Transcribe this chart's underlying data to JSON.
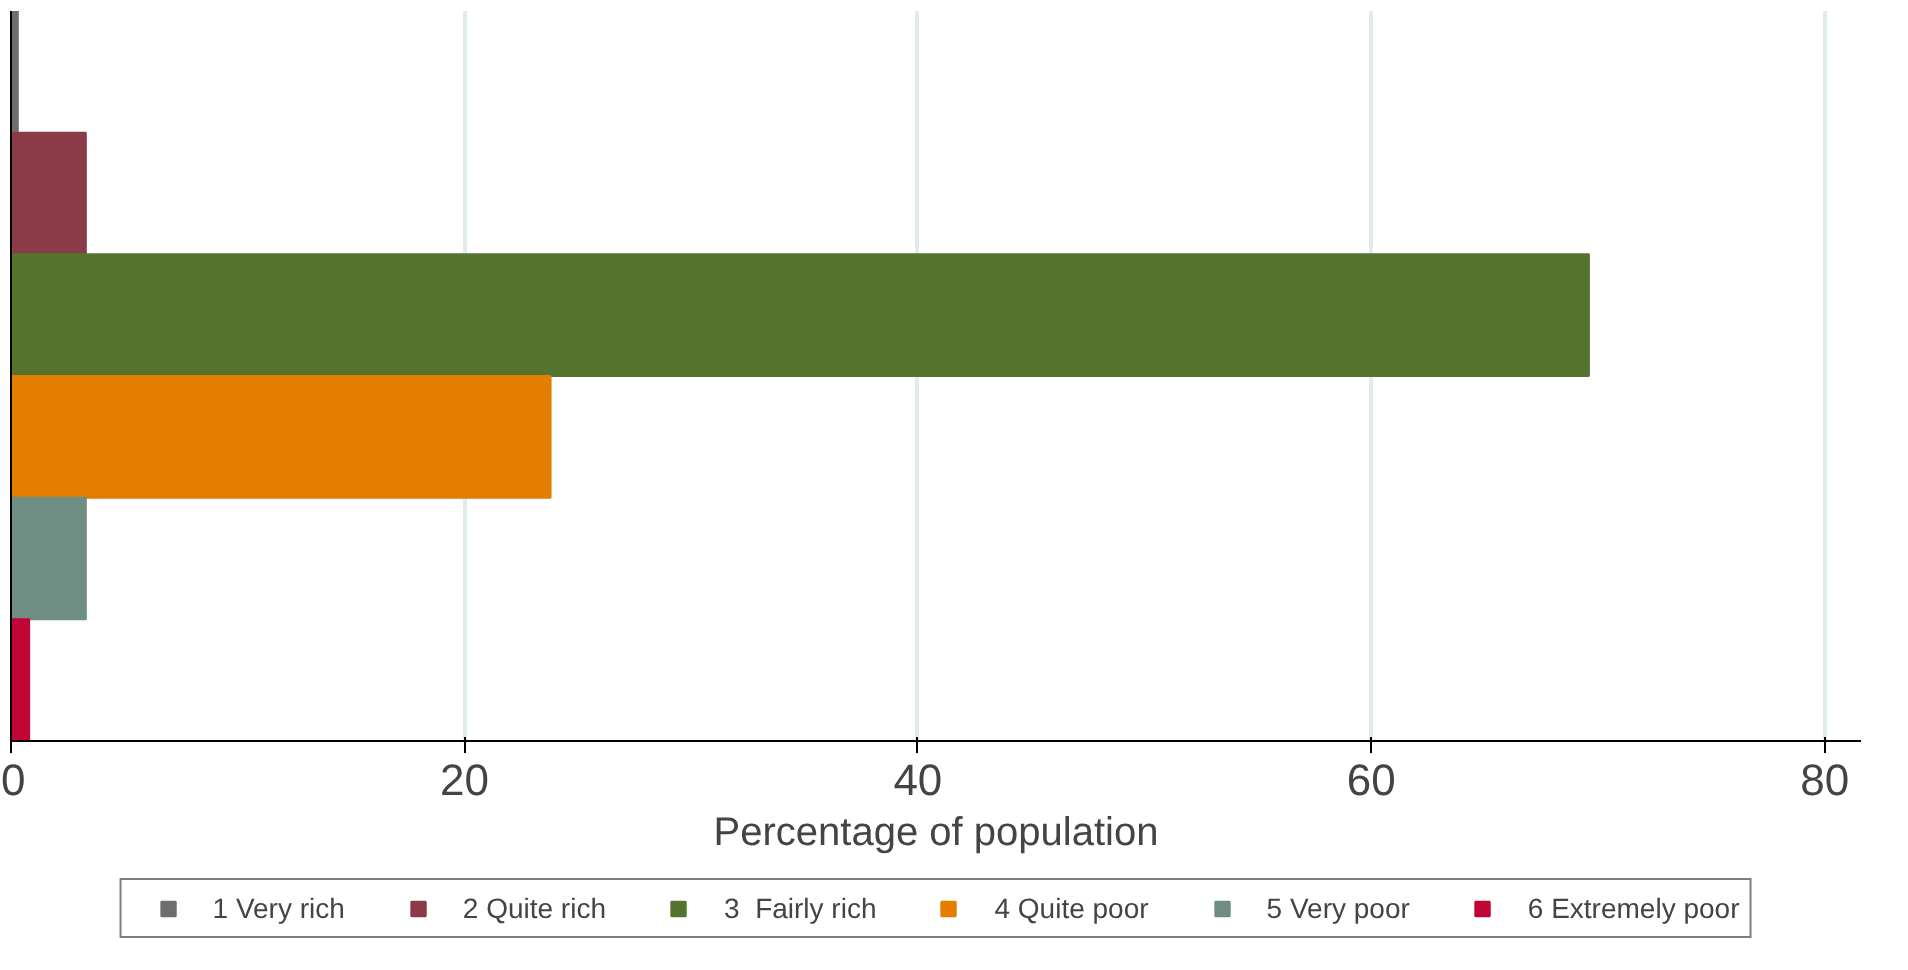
{
  "chart_data": {
    "type": "bar",
    "orientation": "horizontal",
    "xlabel": "Percentage of population",
    "categories": [
      null,
      null,
      null,
      null,
      null,
      null
    ],
    "series": [
      {
        "name": "1 Very rich",
        "color": "#6e6e6e",
        "values": [
          0.3,
          null,
          null,
          null,
          null,
          null
        ]
      },
      {
        "name": "2 Quite rich",
        "color": "#8b3a47",
        "values": [
          null,
          3.3,
          null,
          null,
          null,
          null
        ]
      },
      {
        "name": "3  Fairly rich",
        "color": "#55752f",
        "values": [
          null,
          null,
          69.6,
          null,
          null,
          null
        ]
      },
      {
        "name": "4 Quite poor",
        "color": "#e37e00",
        "values": [
          null,
          null,
          null,
          23.8,
          null,
          null
        ]
      },
      {
        "name": "5 Very poor",
        "color": "#6e8e84",
        "values": [
          null,
          null,
          null,
          null,
          3.3,
          null
        ]
      },
      {
        "name": "6 Extremely poor",
        "color": "#c10534",
        "values": [
          null,
          null,
          null,
          null,
          null,
          0.8
        ]
      }
    ],
    "xlim": [
      0,
      81.6
    ],
    "xticks": [
      0,
      20,
      40,
      60,
      80
    ],
    "grid": "x",
    "legend": "bottom",
    "tick_labels": "x"
  }
}
